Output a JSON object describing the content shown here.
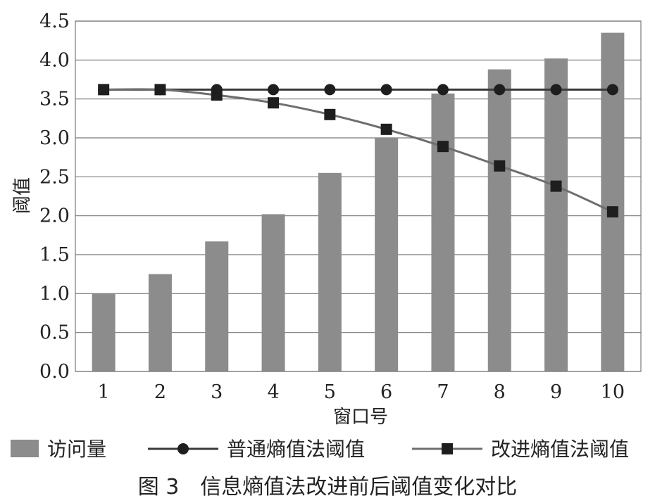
{
  "chart_data": {
    "type": "bar",
    "xlabel": "窗口号",
    "ylabel": "阈值",
    "ylim": [
      0,
      4.5
    ],
    "yticks": [
      "0.0",
      "0.5",
      "1.0",
      "1.5",
      "2.0",
      "2.5",
      "3.0",
      "3.5",
      "4.0",
      "4.5"
    ],
    "categories": [
      "1",
      "2",
      "3",
      "4",
      "5",
      "6",
      "7",
      "8",
      "9",
      "10"
    ],
    "grid": "horizontal",
    "legend_position": "bottom",
    "series": [
      {
        "name": "访问量",
        "type": "bar",
        "color": "#8c8c8c",
        "values": [
          1.0,
          1.25,
          1.67,
          2.02,
          2.55,
          3.0,
          3.57,
          3.88,
          4.02,
          4.35
        ]
      },
      {
        "name": "普通熵值法阈值",
        "type": "line",
        "marker": "circle",
        "color": "#3a3a3a",
        "values": [
          3.62,
          3.62,
          3.62,
          3.62,
          3.62,
          3.62,
          3.62,
          3.62,
          3.62,
          3.62
        ]
      },
      {
        "name": "改进熵值法阈值",
        "type": "line",
        "marker": "square",
        "color": "#6e6e6e",
        "values": [
          3.62,
          3.62,
          3.55,
          3.45,
          3.3,
          3.11,
          2.89,
          2.64,
          2.38,
          2.05
        ]
      }
    ]
  },
  "caption": "图 3　信息熵值法改进前后阈值变化对比"
}
